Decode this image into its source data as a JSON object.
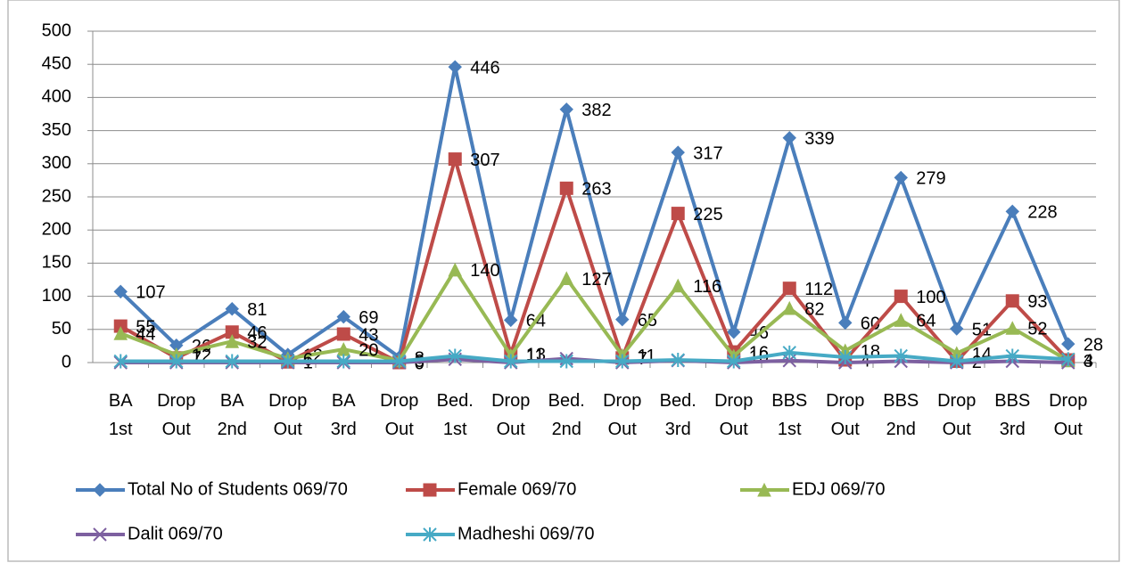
{
  "chart_data": {
    "type": "line",
    "categories": [
      "BA 1st",
      "Drop Out",
      "BA 2nd",
      "Drop Out",
      "BA 3rd",
      "Drop Out",
      "Bed. 1st",
      "Drop Out",
      "Bed. 2nd",
      "Drop Out",
      "Bed. 3rd",
      "Drop Out",
      "BBS 1st",
      "Drop Out",
      "BBS 2nd",
      "Drop Out",
      "BBS 3rd",
      "Drop Out"
    ],
    "series": [
      {
        "name": "Total No of Students 069/70",
        "color": "#4a7ebb",
        "marker": "diamond",
        "data_labels": true,
        "values": [
          107,
          26,
          81,
          12,
          69,
          8,
          446,
          64,
          382,
          65,
          317,
          46,
          339,
          60,
          279,
          51,
          228,
          28
        ]
      },
      {
        "name": "Female 069/70",
        "color": "#be4b48",
        "marker": "square",
        "data_labels": true,
        "values": [
          55,
          7,
          46,
          1,
          43,
          0,
          307,
          13,
          263,
          7,
          225,
          16,
          112,
          4,
          100,
          2,
          93,
          4
        ]
      },
      {
        "name": "EDJ 069/70",
        "color": "#98b954",
        "marker": "triangle",
        "data_labels": true,
        "values": [
          44,
          12,
          32,
          6,
          20,
          3,
          140,
          11,
          127,
          11,
          116,
          10,
          82,
          18,
          64,
          14,
          52,
          3
        ]
      },
      {
        "name": "Dalit 069/70",
        "color": "#7d60a0",
        "marker": "x",
        "data_labels": false,
        "values": [
          0,
          0,
          0,
          0,
          0,
          0,
          5,
          0,
          6,
          0,
          3,
          0,
          3,
          0,
          2,
          0,
          2,
          0
        ]
      },
      {
        "name": "Madheshi 069/70",
        "color": "#46aac5",
        "marker": "star",
        "data_labels": false,
        "values": [
          2,
          2,
          2,
          2,
          2,
          2,
          10,
          2,
          2,
          2,
          4,
          2,
          15,
          8,
          10,
          2,
          10,
          5
        ]
      }
    ],
    "ylim": [
      0,
      500
    ],
    "yticks": [
      0,
      50,
      100,
      150,
      200,
      250,
      300,
      350,
      400,
      450,
      500
    ],
    "grid": true,
    "legend": "bottom"
  }
}
